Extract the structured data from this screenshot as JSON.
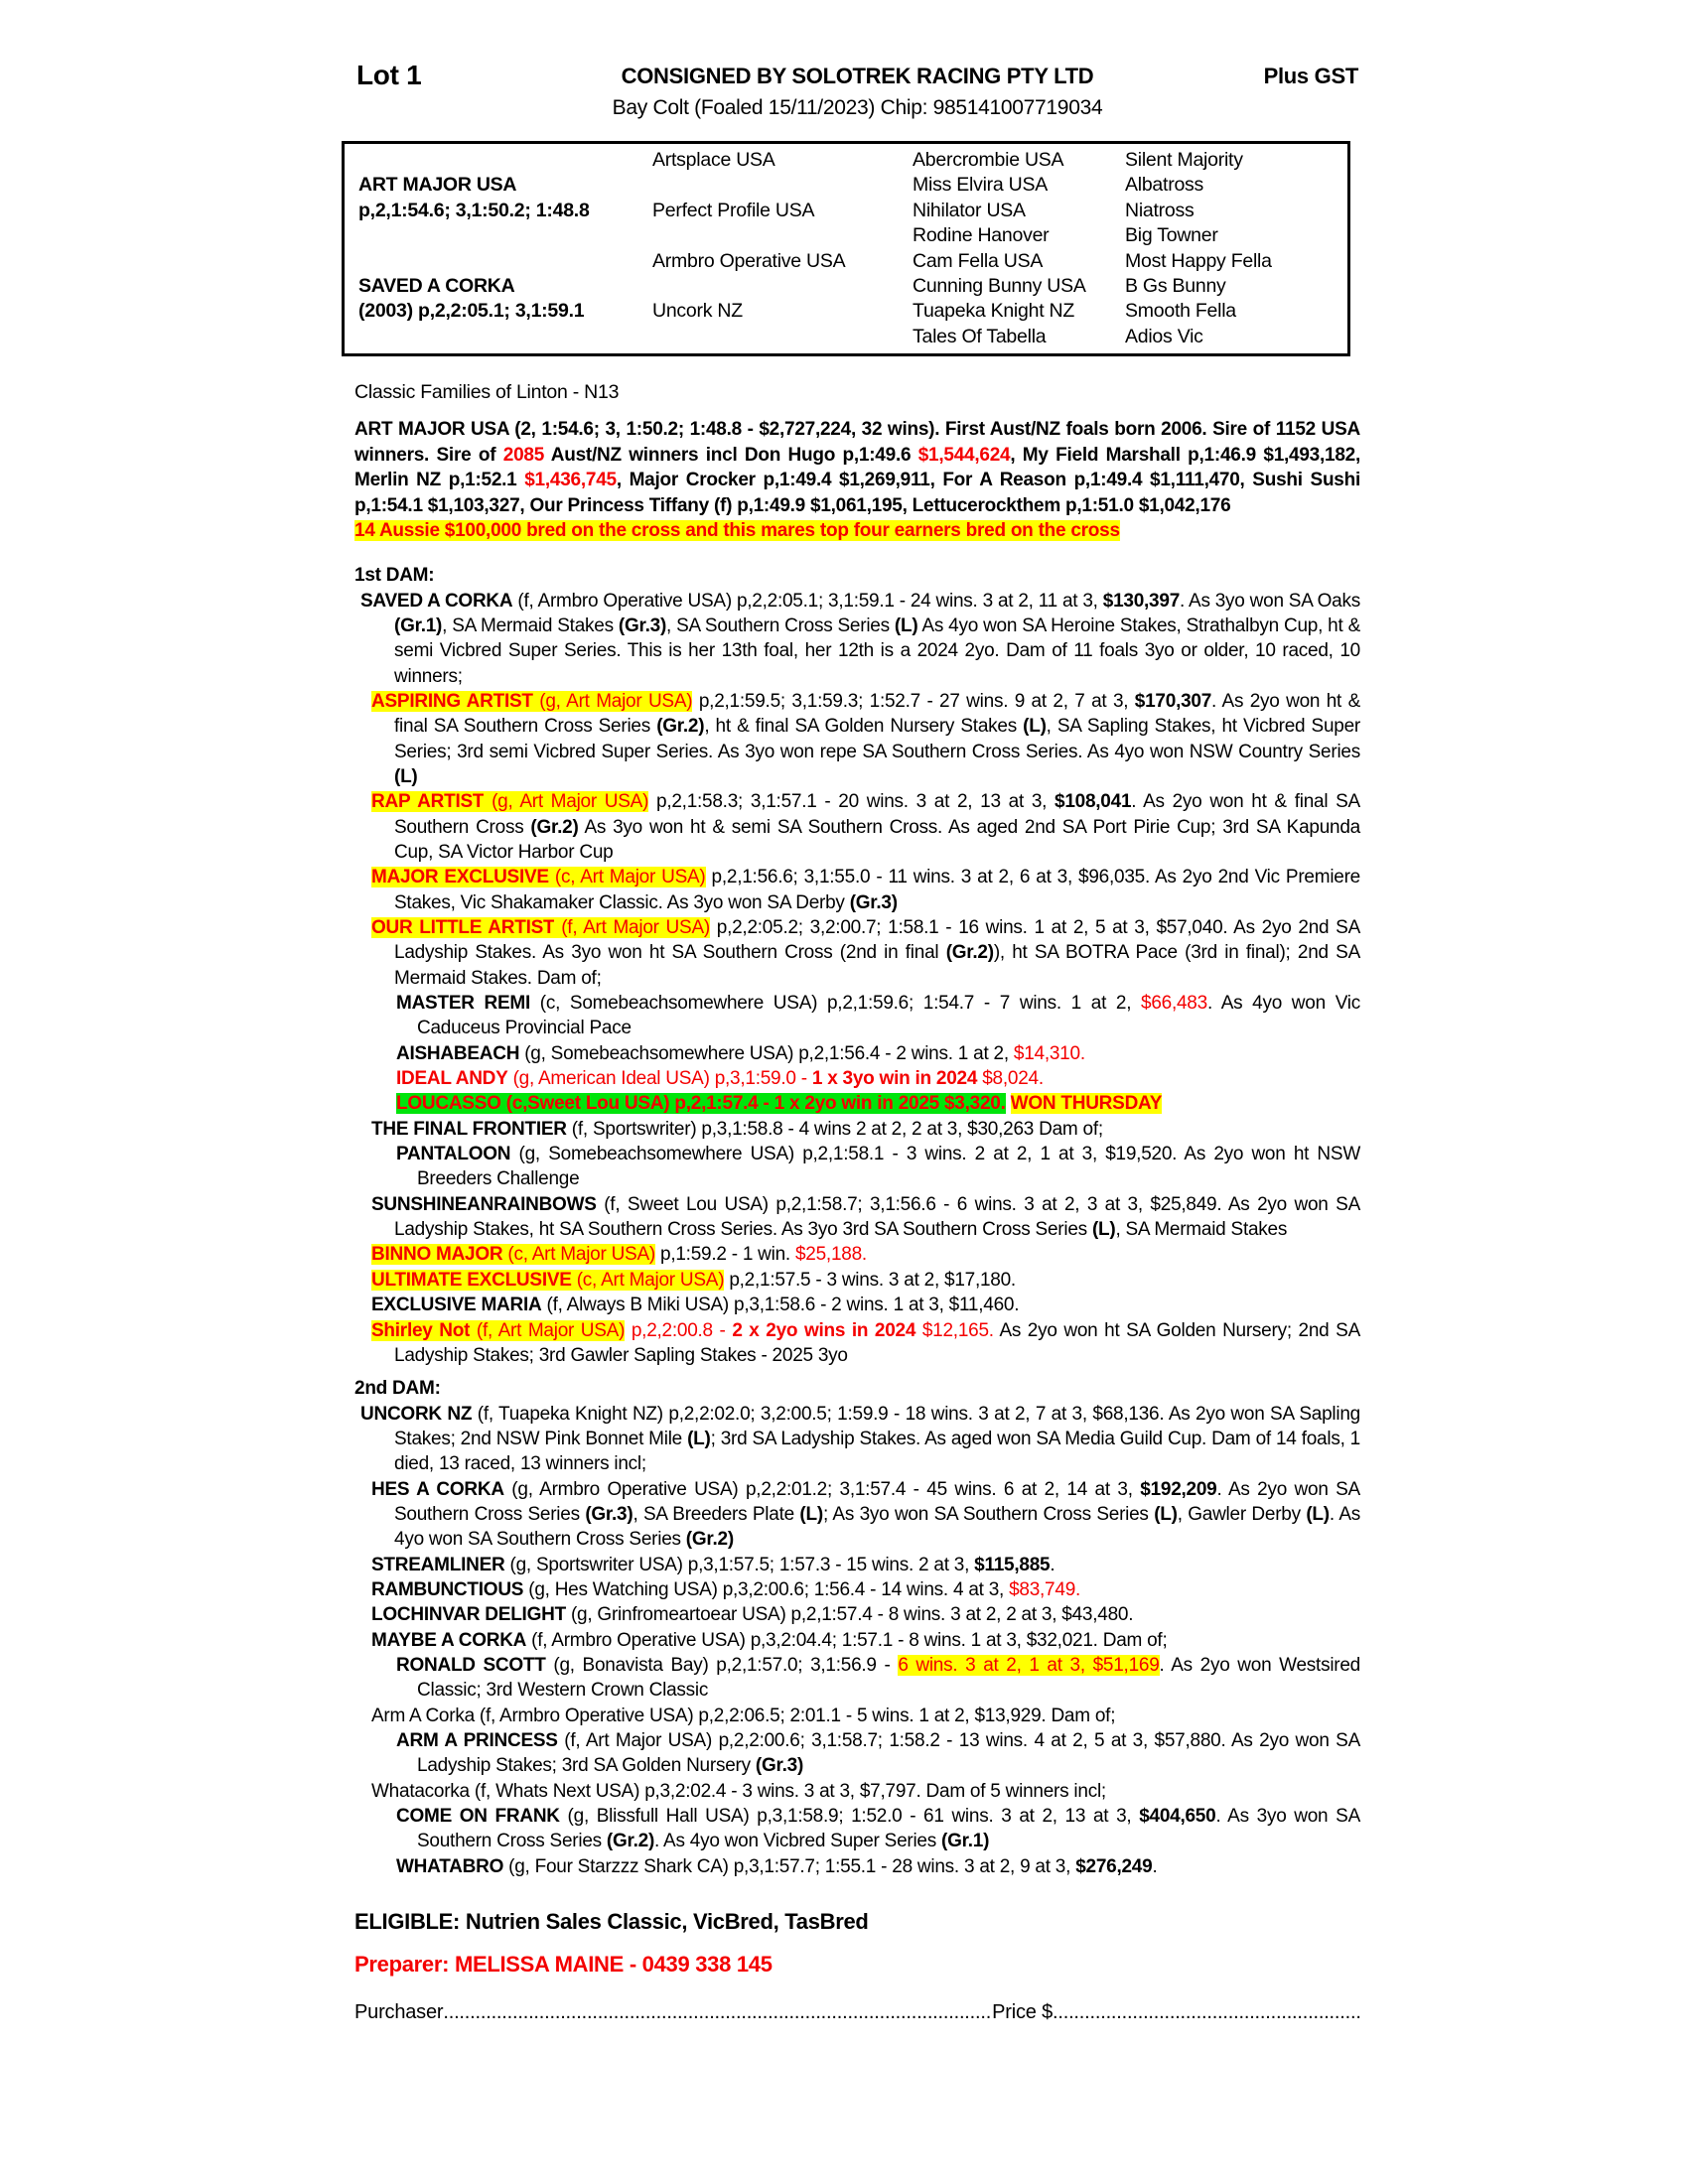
{
  "header": {
    "lot": "Lot 1",
    "consignor": "CONSIGNED BY SOLOTREK RACING PTY LTD",
    "gst": "Plus GST",
    "foal_line": "Bay Colt (Foaled 15/11/2023) Chip: 985141007719034"
  },
  "pedigree_table": {
    "cells": [
      {
        "r": 1,
        "c": 2,
        "t": "Artsplace USA"
      },
      {
        "r": 1,
        "c": 3,
        "t": "Abercrombie USA"
      },
      {
        "r": 1,
        "c": 4,
        "t": "Silent Majority"
      },
      {
        "r": 2,
        "c": 1,
        "t": "ART MAJOR USA",
        "b": true
      },
      {
        "r": 2,
        "c": 3,
        "t": "Miss Elvira USA"
      },
      {
        "r": 2,
        "c": 4,
        "t": "Albatross"
      },
      {
        "r": 3,
        "c": 1,
        "t": "p,2,1:54.6; 3,1:50.2; 1:48.8",
        "b": true
      },
      {
        "r": 3,
        "c": 2,
        "t": "Perfect Profile USA"
      },
      {
        "r": 3,
        "c": 3,
        "t": "Nihilator USA"
      },
      {
        "r": 3,
        "c": 4,
        "t": "Niatross"
      },
      {
        "r": 4,
        "c": 3,
        "t": "Rodine Hanover"
      },
      {
        "r": 4,
        "c": 4,
        "t": "Big Towner"
      },
      {
        "r": 5,
        "c": 2,
        "t": "Armbro Operative USA"
      },
      {
        "r": 5,
        "c": 3,
        "t": "Cam Fella USA"
      },
      {
        "r": 5,
        "c": 4,
        "t": "Most Happy Fella"
      },
      {
        "r": 6,
        "c": 1,
        "t": "SAVED A CORKA",
        "b": true
      },
      {
        "r": 6,
        "c": 3,
        "t": "Cunning Bunny USA"
      },
      {
        "r": 6,
        "c": 4,
        "t": "B Gs Bunny"
      },
      {
        "r": 7,
        "c": 1,
        "t": "(2003) p,2,2:05.1; 3,1:59.1",
        "b": true
      },
      {
        "r": 7,
        "c": 2,
        "t": "Uncork NZ"
      },
      {
        "r": 7,
        "c": 3,
        "t": "Tuapeka Knight NZ"
      },
      {
        "r": 7,
        "c": 4,
        "t": "Smooth Fella"
      },
      {
        "r": 8,
        "c": 3,
        "t": "Tales Of Tabella"
      },
      {
        "r": 8,
        "c": 4,
        "t": "Adios Vic"
      }
    ]
  },
  "family_line": "Classic Families of Linton - N13",
  "blocks": [
    {
      "n": "sire-summary",
      "fi": 0,
      "ci": 0,
      "mt": 12,
      "segs": [
        [
          "ART MAJOR USA (2, 1:54.6; 3, 1:50.2; 1:48.8 - $2,727,224, 32 wins). First Aust/NZ foals born 2006. Sire of 1152 USA winners. Sire of ",
          "b"
        ],
        [
          "2085",
          "br"
        ],
        [
          " Aust/NZ winners incl Don Hugo p,1:49.6 ",
          "b"
        ],
        [
          "$1,544,624",
          "br"
        ],
        [
          ", My Field Marshall p,1:46.9 $1,493,182, Merlin NZ p,1:52.1 ",
          "b"
        ],
        [
          "$1,436,745",
          "br"
        ],
        [
          ", Major Crocker p,1:49.4 $1,269,911, For A Reason p,1:49.4 $1,111,470, Sushi Sushi p,1:54.1 $1,103,327, Our Princess Tiffany (f) p,1:49.9 $1,061,195, Lettucerockthem p,1:51.0 $1,042,176",
          "b"
        ]
      ]
    },
    {
      "n": "sire-cross-highlight",
      "fi": 0,
      "ci": 0,
      "mt": 0,
      "segs": [
        [
          "14 Aussie $100,000 bred on the cross and this mares top four earners bred on the cross",
          "bry"
        ]
      ]
    },
    {
      "n": "first-dam-heading",
      "fi": 0,
      "ci": 0,
      "mt": 20,
      "segs": [
        [
          "1st DAM:",
          "b"
        ]
      ]
    },
    {
      "n": "entry-saved-a-corka",
      "fi": 6,
      "ci": 40,
      "mt": 0,
      "segs": [
        [
          "SAVED A CORKA",
          "b"
        ],
        [
          " (f, Armbro Operative USA) p,2,2:05.1; 3,1:59.1 - 24 wins. 3 at 2, 11 at 3, ",
          ""
        ],
        [
          "$130,397",
          "b"
        ],
        [
          ". As 3yo won SA Oaks ",
          ""
        ],
        [
          "(Gr.1)",
          "b"
        ],
        [
          ", SA Mermaid Stakes ",
          ""
        ],
        [
          "(Gr.3)",
          "b"
        ],
        [
          ", SA Southern Cross Series ",
          ""
        ],
        [
          "(L)",
          "b"
        ],
        [
          " As 4yo won SA Heroine Stakes, Strathalbyn Cup, ht & semi Vicbred Super Series. This is her 13th foal, her 12th is a 2024 2yo. Dam of 11 foals 3yo or older, 10 raced, 10 winners;",
          ""
        ]
      ]
    },
    {
      "n": "entry-aspiring-artist",
      "fi": 17,
      "ci": 40,
      "mt": 0,
      "segs": [
        [
          "ASPIRING ARTIST",
          "bry"
        ],
        [
          " (g, Art Major USA)",
          "ry"
        ],
        [
          " p,2,1:59.5; 3,1:59.3; 1:52.7 - 27 wins. 9 at 2, 7 at 3, ",
          ""
        ],
        [
          "$170,307",
          "b"
        ],
        [
          ". As 2yo won ht & final SA Southern Cross Series ",
          ""
        ],
        [
          "(Gr.2)",
          "b"
        ],
        [
          ", ht & final SA Golden Nursery Stakes ",
          ""
        ],
        [
          "(L)",
          "b"
        ],
        [
          ", SA Sapling Stakes, ht Vicbred Super Series; 3rd semi Vicbred Super Series. As 3yo won repe SA Southern Cross Series. As 4yo won NSW Country Series ",
          ""
        ],
        [
          "(L)",
          "b"
        ]
      ]
    },
    {
      "n": "entry-rap-artist",
      "fi": 17,
      "ci": 40,
      "mt": 0,
      "segs": [
        [
          "RAP ARTIST",
          "bry"
        ],
        [
          " (g, Art Major USA)",
          "ry"
        ],
        [
          " p,2,1:58.3; 3,1:57.1 - 20 wins. 3 at 2, 13 at 3, ",
          ""
        ],
        [
          "$108,041",
          "b"
        ],
        [
          ". As 2yo won ht & final SA Southern Cross ",
          ""
        ],
        [
          "(Gr.2)",
          "b"
        ],
        [
          " As 3yo won ht & semi SA Southern Cross. As aged 2nd SA Port Pirie Cup; 3rd SA Kapunda Cup, SA Victor Harbor Cup",
          ""
        ]
      ]
    },
    {
      "n": "entry-major-exclusive",
      "fi": 17,
      "ci": 40,
      "mt": 0,
      "segs": [
        [
          "MAJOR EXCLUSIVE",
          "bry"
        ],
        [
          " (c, Art Major USA)",
          "ry"
        ],
        [
          " p,2,1:56.6; 3,1:55.0 - 11 wins. 3 at 2, 6 at 3, $96,035. As 2yo 2nd Vic Premiere Stakes, Vic Shakamaker Classic. As 3yo won SA Derby ",
          ""
        ],
        [
          "(Gr.3)",
          "b"
        ]
      ]
    },
    {
      "n": "entry-our-little-artist",
      "fi": 17,
      "ci": 40,
      "mt": 0,
      "segs": [
        [
          "OUR LITTLE ARTIST",
          "bry"
        ],
        [
          " (f, Art Major USA)",
          "ry"
        ],
        [
          " p,2,2:05.2; 3,2:00.7; 1:58.1 - 16 wins. 1 at 2, 5 at 3, $57,040. As 2yo 2nd SA Ladyship Stakes. As 3yo won ht SA Southern Cross (2nd in final ",
          ""
        ],
        [
          "(Gr.2)",
          "b"
        ],
        [
          "), ht SA BOTRA Pace (3rd in final); 2nd SA Mermaid Stakes. Dam of;",
          ""
        ]
      ]
    },
    {
      "n": "entry-master-remi",
      "fi": 42,
      "ci": 63,
      "mt": 0,
      "segs": [
        [
          "MASTER REMI",
          "b"
        ],
        [
          " (c, Somebeachsomewhere USA) p,2,1:59.6; 1:54.7 - 7 wins. 1 at 2, ",
          ""
        ],
        [
          "$66,483",
          "r"
        ],
        [
          ". As 4yo won Vic Caduceus Provincial Pace",
          ""
        ]
      ]
    },
    {
      "n": "entry-aishabeach",
      "fi": 42,
      "ci": 63,
      "mt": 0,
      "segs": [
        [
          "AISHABEACH",
          "b"
        ],
        [
          " (g, Somebeachsomewhere USA) p,2,1:56.4 - 2 wins. 1 at 2, ",
          ""
        ],
        [
          "$14,310.",
          "r"
        ]
      ]
    },
    {
      "n": "entry-ideal-andy",
      "fi": 42,
      "ci": 63,
      "mt": 0,
      "segs": [
        [
          "IDEAL ANDY",
          "br"
        ],
        [
          " (g, American Ideal USA) p,3,1:59.0 - ",
          "r"
        ],
        [
          "1 x 3yo win in 2024",
          "br"
        ],
        [
          " $8,024.",
          "r"
        ]
      ]
    },
    {
      "n": "entry-loucasso",
      "fi": 42,
      "ci": 63,
      "mt": 0,
      "segs": [
        [
          "LOUCASSO (c,Sweet Lou USA) p,2,1:57.4 - 1 x 2yo win in 2025 $3,320.",
          "brg"
        ],
        [
          " ",
          ""
        ],
        [
          "WON THURSDAY",
          "bry"
        ]
      ]
    },
    {
      "n": "entry-the-final-frontier",
      "fi": 17,
      "ci": 40,
      "mt": 0,
      "segs": [
        [
          "THE FINAL FRONTIER",
          "b"
        ],
        [
          " (f, Sportswriter) p,3,1:58.8 - 4 wins 2 at 2, 2 at 3, $30,263 Dam of;",
          ""
        ]
      ]
    },
    {
      "n": "entry-pantaloon",
      "fi": 42,
      "ci": 63,
      "mt": 0,
      "segs": [
        [
          "PANTALOON",
          "b"
        ],
        [
          " (g, Somebeachsomewhere USA) p,2,1:58.1 - 3 wins. 2 at 2, 1 at 3, $19,520. As 2yo won ht NSW Breeders Challenge",
          ""
        ]
      ]
    },
    {
      "n": "entry-sunshineanrainbows",
      "fi": 17,
      "ci": 40,
      "mt": 0,
      "segs": [
        [
          "SUNSHINEANRAINBOWS",
          "b"
        ],
        [
          " (f, Sweet Lou USA) p,2,1:58.7; 3,1:56.6 - 6 wins. 3 at 2, 3 at 3, $25,849. As 2yo won SA Ladyship Stakes, ht SA Southern Cross Series. As 3yo 3rd SA Southern Cross Series ",
          ""
        ],
        [
          "(L)",
          "b"
        ],
        [
          ", SA Mermaid Stakes",
          ""
        ]
      ]
    },
    {
      "n": "entry-binno-major",
      "fi": 17,
      "ci": 40,
      "mt": 0,
      "segs": [
        [
          "BINNO MAJOR",
          "bry"
        ],
        [
          " (c, Art Major USA)",
          "ry"
        ],
        [
          " p,1:59.2 - 1 win. ",
          ""
        ],
        [
          "$25,188.",
          "r"
        ]
      ]
    },
    {
      "n": "entry-ultimate-exclusive",
      "fi": 17,
      "ci": 40,
      "mt": 0,
      "segs": [
        [
          "ULTIMATE EXCLUSIVE",
          "bry"
        ],
        [
          " (c, Art Major USA)",
          "ry"
        ],
        [
          " p,2,1:57.5 - 3 wins. 3 at 2, $17,180.",
          ""
        ]
      ]
    },
    {
      "n": "entry-exclusive-maria",
      "fi": 17,
      "ci": 40,
      "mt": 0,
      "segs": [
        [
          "EXCLUSIVE MARIA",
          "b"
        ],
        [
          " (f, Always B Miki USA) p,3,1:58.6 - 2 wins. 1 at 3, $11,460.",
          ""
        ]
      ]
    },
    {
      "n": "entry-shirley-not",
      "fi": 17,
      "ci": 40,
      "mt": 0,
      "segs": [
        [
          "Shirley Not",
          "bry"
        ],
        [
          " (f, Art Major USA)",
          "ry"
        ],
        [
          " ",
          ""
        ],
        [
          "p,2,2:00.8 - ",
          "r"
        ],
        [
          "2 x 2yo wins in 2024",
          "br"
        ],
        [
          " $12,165.",
          "r"
        ],
        [
          " As 2yo won ht SA Golden Nursery; 2nd SA Ladyship Stakes; 3rd Gawler Sapling Stakes - 2025 3yo",
          ""
        ]
      ]
    },
    {
      "n": "second-dam-heading",
      "fi": 0,
      "ci": 0,
      "mt": 8,
      "segs": [
        [
          "2nd DAM:",
          "b"
        ]
      ]
    },
    {
      "n": "entry-uncork-nz",
      "fi": 6,
      "ci": 40,
      "mt": 0,
      "segs": [
        [
          "UNCORK NZ",
          "b"
        ],
        [
          " (f, Tuapeka Knight NZ) p,2,2:02.0; 3,2:00.5; 1:59.9 - 18 wins. 3 at 2, 7 at 3, $68,136. As 2yo won SA Sapling Stakes; 2nd NSW Pink Bonnet Mile ",
          ""
        ],
        [
          "(L)",
          "b"
        ],
        [
          "; 3rd SA Ladyship Stakes. As aged won SA Media Guild Cup. Dam of 14 foals, 1 died, 13 raced, 13 winners incl;",
          ""
        ]
      ]
    },
    {
      "n": "entry-hes-a-corka",
      "fi": 17,
      "ci": 40,
      "mt": 0,
      "segs": [
        [
          "HES A CORKA",
          "b"
        ],
        [
          " (g, Armbro Operative USA) p,2,2:01.2; 3,1:57.4 - 45 wins. 6 at 2, 14 at 3, ",
          ""
        ],
        [
          "$192,209",
          "b"
        ],
        [
          ". As 2yo won SA Southern Cross Series ",
          ""
        ],
        [
          "(Gr.3)",
          "b"
        ],
        [
          ", SA Breeders Plate ",
          ""
        ],
        [
          "(L)",
          "b"
        ],
        [
          "; As 3yo won SA Southern Cross Series ",
          ""
        ],
        [
          "(L)",
          "b"
        ],
        [
          ", Gawler Derby ",
          ""
        ],
        [
          "(L)",
          "b"
        ],
        [
          ". As 4yo won SA Southern Cross Series ",
          ""
        ],
        [
          "(Gr.2)",
          "b"
        ]
      ]
    },
    {
      "n": "entry-streamliner",
      "fi": 17,
      "ci": 40,
      "mt": 0,
      "segs": [
        [
          "STREAMLINER",
          "b"
        ],
        [
          " (g, Sportswriter USA) p,3,1:57.5; 1:57.3 - 15 wins. 2 at 3, ",
          ""
        ],
        [
          "$115,885",
          "b"
        ],
        [
          ".",
          ""
        ]
      ]
    },
    {
      "n": "entry-rambunctious",
      "fi": 17,
      "ci": 40,
      "mt": 0,
      "segs": [
        [
          "RAMBUNCTIOUS",
          "b"
        ],
        [
          " (g, Hes Watching USA) p,3,2:00.6; 1:56.4 - 14 wins. 4 at 3, ",
          ""
        ],
        [
          "$83,749.",
          "r"
        ]
      ]
    },
    {
      "n": "entry-lochinvar-delight",
      "fi": 17,
      "ci": 40,
      "mt": 0,
      "segs": [
        [
          "LOCHINVAR DELIGHT",
          "b"
        ],
        [
          " (g, Grinfromeartoear USA) p,2,1:57.4 - 8 wins. 3 at 2, 2 at 3, $43,480.",
          ""
        ]
      ]
    },
    {
      "n": "entry-maybe-a-corka",
      "fi": 17,
      "ci": 40,
      "mt": 0,
      "segs": [
        [
          "MAYBE A CORKA",
          "b"
        ],
        [
          " (f, Armbro Operative USA) p,3,2:04.4; 1:57.1 - 8 wins. 1 at 3, $32,021. Dam of;",
          ""
        ]
      ]
    },
    {
      "n": "entry-ronald-scott",
      "fi": 42,
      "ci": 63,
      "mt": 0,
      "segs": [
        [
          "RONALD SCOTT",
          "b"
        ],
        [
          " (g, Bonavista Bay) p,2,1:57.0; 3,1:56.9 - ",
          ""
        ],
        [
          "6 wins. 3 at 2, 1 at 3, $51,169",
          "ry"
        ],
        [
          ". As 2yo won Westsired Classic; 3rd Western Crown Classic",
          ""
        ]
      ]
    },
    {
      "n": "entry-arm-a-corka",
      "fi": 17,
      "ci": 40,
      "mt": 0,
      "segs": [
        [
          "Arm A Corka (f, Armbro Operative USA) p,2,2:06.5; 2:01.1 - 5 wins. 1 at 2, $13,929. Dam of;",
          ""
        ]
      ]
    },
    {
      "n": "entry-arm-a-princess",
      "fi": 42,
      "ci": 63,
      "mt": 0,
      "segs": [
        [
          "ARM A PRINCESS",
          "b"
        ],
        [
          " (f, Art Major USA) p,2,2:00.6; 3,1:58.7; 1:58.2 - 13 wins. 4 at 2, 5 at 3, $57,880. As 2yo won SA Ladyship Stakes; 3rd SA Golden Nursery ",
          ""
        ],
        [
          "(Gr.3)",
          "b"
        ]
      ]
    },
    {
      "n": "entry-whatacorka",
      "fi": 17,
      "ci": 40,
      "mt": 0,
      "segs": [
        [
          "Whatacorka (f, Whats Next USA) p,3,2:02.4 - 3 wins. 3 at 3, $7,797. Dam of 5 winners incl;",
          ""
        ]
      ]
    },
    {
      "n": "entry-come-on-frank",
      "fi": 42,
      "ci": 63,
      "mt": 0,
      "segs": [
        [
          "COME ON FRANK",
          "b"
        ],
        [
          " (g, Blissfull Hall USA) p,3,1:58.9; 1:52.0 - 61 wins. 3 at 2, 13 at 3, ",
          ""
        ],
        [
          "$404,650",
          "b"
        ],
        [
          ". As 3yo won SA Southern Cross Series ",
          ""
        ],
        [
          "(Gr.2)",
          "b"
        ],
        [
          ". As 4yo won Vicbred Super Series ",
          ""
        ],
        [
          "(Gr.1)",
          "b"
        ]
      ]
    },
    {
      "n": "entry-whatabro",
      "fi": 42,
      "ci": 63,
      "mt": 0,
      "segs": [
        [
          "WHATABRO",
          "b"
        ],
        [
          " (g, Four Starzzz Shark CA) p,3,1:57.7; 1:55.1 - 28 wins. 3 at 2, 9 at 3, ",
          ""
        ],
        [
          "$276,249",
          "b"
        ],
        [
          ".",
          ""
        ]
      ]
    }
  ],
  "eligible": "ELIGIBLE: Nutrien Sales Classic, VicBred, TasBred",
  "preparer": "Preparer: MELISSA MAINE - 0439 338 145",
  "purchaser": {
    "label": "Purchaser",
    "dots1": "....................................................................................................................................................",
    "price_label": "Price $",
    "dots2": "................................................................................"
  },
  "colors": {
    "text_red": "#f40000",
    "highlight_yellow": "#ffff00",
    "highlight_green": "#00e40b",
    "text_black": "#000000"
  }
}
